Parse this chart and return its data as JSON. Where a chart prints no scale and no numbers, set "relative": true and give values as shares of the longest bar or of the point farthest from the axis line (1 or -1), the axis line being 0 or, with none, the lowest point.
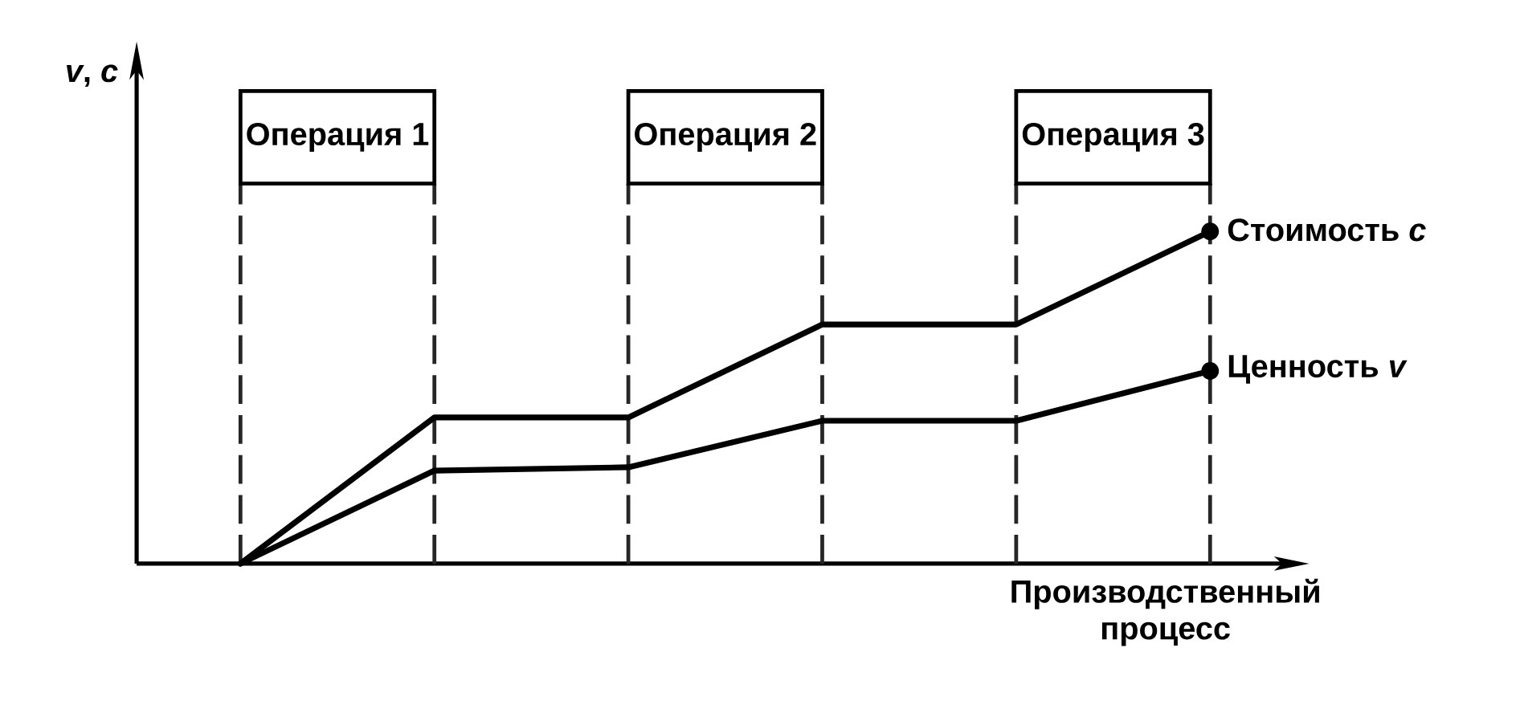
{
  "chart_data": {
    "type": "line",
    "ylabel": "*v*, *c*",
    "xlabel": "Производственный процесс",
    "categories": [
      null,
      null,
      null,
      null,
      null,
      null
    ],
    "relative": true,
    "series": [
      {
        "name": "Стоимость *c*",
        "color": "#000000",
        "values": [
          0,
          0.44,
          0.44,
          0.72,
          0.72,
          1
        ]
      },
      {
        "name": "Ценность *v*",
        "color": "#000000",
        "values": [
          0,
          0.28,
          0.29,
          0.43,
          0.43,
          0.58
        ]
      }
    ],
    "annotations": [
      "Операция 1",
      "Операция 2",
      "Операция 3"
    ],
    "grid": "x",
    "marker": "none",
    "line_style": "solid"
  }
}
